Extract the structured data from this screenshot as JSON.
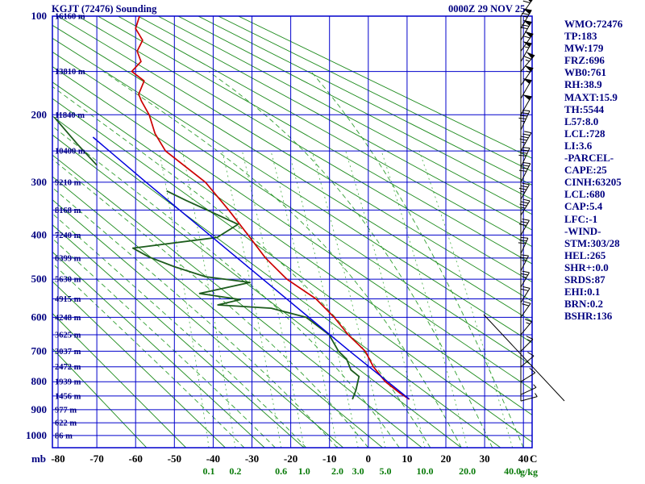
{
  "header": {
    "title": "KGJT (72476) Sounding",
    "datetime": "0000Z 29 NOV 25"
  },
  "info_panel": {
    "lines": [
      "WMO:72476",
      "TP:183",
      "MW:179",
      "FRZ:696",
      "WB0:761",
      "RH:38.9",
      "MAXT:15.9",
      "TH:5544",
      "L57:8.0",
      "LCL:728",
      "LI:3.6",
      "-PARCEL-",
      "CAPE:25",
      "CINH:63205",
      "LCL:680",
      "CAP:5.4",
      "LFC:-1",
      "-WIND-",
      "STM:303/28",
      "HEL:265",
      "SHR+:0.0",
      "SRDS:87",
      "EHI:0.1",
      "BRN:0.2",
      "BSHR:136"
    ]
  },
  "axes": {
    "pressure_unit": "mb",
    "temp_unit": "C",
    "mixing_unit": "g/kg",
    "pressure_ticks": [
      100,
      200,
      300,
      400,
      500,
      600,
      700,
      800,
      900,
      1000
    ],
    "temp_ticks": [
      -80,
      -70,
      -60,
      -50,
      -40,
      -30,
      -20,
      -10,
      0,
      10,
      20,
      30,
      40
    ],
    "mixing_ticks": [
      0.1,
      0.2,
      0.6,
      1.0,
      2.0,
      3.0,
      5.0,
      10.0,
      20.0,
      40.0
    ],
    "height_labels": [
      {
        "p": 100,
        "label": "16160 m"
      },
      {
        "p": 150,
        "label": "13810 m"
      },
      {
        "p": 200,
        "label": "11840 m"
      },
      {
        "p": 250,
        "label": "10400 m"
      },
      {
        "p": 300,
        "label": "9210 m"
      },
      {
        "p": 350,
        "label": "8168 m"
      },
      {
        "p": 400,
        "label": "7240 m"
      },
      {
        "p": 450,
        "label": "6399 m"
      },
      {
        "p": 500,
        "label": "5630 m"
      },
      {
        "p": 550,
        "label": "4915 m"
      },
      {
        "p": 600,
        "label": "4248 m"
      },
      {
        "p": 650,
        "label": "3625 m"
      },
      {
        "p": 700,
        "label": "3037 m"
      },
      {
        "p": 750,
        "label": "2472 m"
      },
      {
        "p": 800,
        "label": "1939 m"
      },
      {
        "p": 850,
        "label": "1456 m"
      },
      {
        "p": 900,
        "label": "977 m"
      },
      {
        "p": 950,
        "label": "622 m"
      },
      {
        "p": 1000,
        "label": "86 m"
      }
    ]
  },
  "chart_data": {
    "type": "line",
    "diagram": "stuve_sounding",
    "title": "KGJT (72476) Sounding 0000Z 29 NOV 25",
    "x_axis": {
      "label": "C",
      "min": -80,
      "max": 40,
      "grid_step": 10
    },
    "y_axis": {
      "label": "mb",
      "scale": "p^0.286 (Stuve)",
      "min": 100,
      "max": 1050,
      "grid_step": 50
    },
    "colors": {
      "grid": "#0000cc",
      "dry_adiabat": "#1b8a1b",
      "moist_adiabat": "#2f9e2f",
      "mixing_ratio": "#44ad44",
      "temperature": "#cc0000",
      "dewpoint": "#1c5c1c",
      "parcel": "#0000dd",
      "wind": "#000000",
      "labels_navy": "#000080",
      "labels_green": "#087a08"
    },
    "series": [
      {
        "name": "temperature",
        "color": "#cc0000",
        "points": [
          [
            862,
            10.6
          ],
          [
            840,
            8.2
          ],
          [
            800,
            4.4
          ],
          [
            750,
            1.3
          ],
          [
            700,
            -0.8
          ],
          [
            650,
            -5.2
          ],
          [
            600,
            -8.8
          ],
          [
            550,
            -13.5
          ],
          [
            500,
            -21
          ],
          [
            450,
            -26.5
          ],
          [
            400,
            -31
          ],
          [
            350,
            -36
          ],
          [
            300,
            -42
          ],
          [
            250,
            -52.3
          ],
          [
            225,
            -55
          ],
          [
            200,
            -56.5
          ],
          [
            183,
            -58.5
          ],
          [
            175,
            -59.2
          ],
          [
            160,
            -57.8
          ],
          [
            150,
            -61
          ],
          [
            140,
            -58.6
          ],
          [
            130,
            -59.6
          ],
          [
            120,
            -58.2
          ],
          [
            110,
            -60
          ],
          [
            100,
            -59
          ]
        ]
      },
      {
        "name": "dewpoint",
        "color": "#1c5c1c",
        "points": [
          [
            862,
            -4.1
          ],
          [
            830,
            -3.2
          ],
          [
            782,
            -2.4
          ],
          [
            760,
            -4.5
          ],
          [
            725,
            -5.6
          ],
          [
            700,
            -7.7
          ],
          [
            650,
            -10.1
          ],
          [
            600,
            -16
          ],
          [
            575,
            -25
          ],
          [
            566,
            -38.8
          ],
          [
            552,
            -33
          ],
          [
            536,
            -43.5
          ],
          [
            508,
            -30.5
          ],
          [
            494,
            -42
          ],
          [
            470,
            -50
          ],
          [
            448,
            -56.5
          ],
          [
            428,
            -60.7
          ],
          [
            405,
            -39
          ],
          [
            378,
            -33.6
          ],
          [
            352,
            -41
          ],
          [
            332,
            -47
          ],
          [
            315,
            -52
          ]
        ]
      },
      {
        "name": "dewpoint_upper",
        "color": "#1c5c1c",
        "points": [
          [
            272,
            -70
          ],
          [
            240,
            -75
          ],
          [
            203,
            -81
          ]
        ]
      },
      {
        "name": "parcel",
        "color": "#0000dd",
        "points": [
          [
            860,
            10.5
          ],
          [
            700,
            -4.8
          ],
          [
            500,
            -27.2
          ],
          [
            400,
            -40.9
          ],
          [
            300,
            -57.3
          ],
          [
            230,
            -71
          ]
        ]
      }
    ],
    "wind_profile": [
      {
        "p": 100,
        "dir": 295,
        "spd": 60
      },
      {
        "p": 110,
        "dir": 300,
        "spd": 65
      },
      {
        "p": 120,
        "dir": 300,
        "spd": 70
      },
      {
        "p": 130,
        "dir": 295,
        "spd": 60
      },
      {
        "p": 140,
        "dir": 300,
        "spd": 55
      },
      {
        "p": 150,
        "dir": 290,
        "spd": 65
      },
      {
        "p": 165,
        "dir": 295,
        "spd": 55
      },
      {
        "p": 180,
        "dir": 300,
        "spd": 50
      },
      {
        "p": 200,
        "dir": 300,
        "spd": 50
      },
      {
        "p": 220,
        "dir": 305,
        "spd": 45
      },
      {
        "p": 250,
        "dir": 300,
        "spd": 45
      },
      {
        "p": 275,
        "dir": 305,
        "spd": 40
      },
      {
        "p": 300,
        "dir": 303,
        "spd": 40
      },
      {
        "p": 330,
        "dir": 300,
        "spd": 35
      },
      {
        "p": 360,
        "dir": 298,
        "spd": 35
      },
      {
        "p": 400,
        "dir": 300,
        "spd": 32
      },
      {
        "p": 440,
        "dir": 305,
        "spd": 30
      },
      {
        "p": 480,
        "dir": 303,
        "spd": 28
      },
      {
        "p": 520,
        "dir": 300,
        "spd": 26
      },
      {
        "p": 560,
        "dir": 298,
        "spd": 24
      },
      {
        "p": 600,
        "dir": 295,
        "spd": 22
      },
      {
        "p": 650,
        "dir": 290,
        "spd": 18
      },
      {
        "p": 700,
        "dir": 285,
        "spd": 15
      },
      {
        "p": 750,
        "dir": 280,
        "spd": 12
      },
      {
        "p": 800,
        "dir": 272,
        "spd": 10
      },
      {
        "p": 845,
        "dir": 265,
        "spd": 8
      },
      {
        "p": 868,
        "dir": 255,
        "spd": 6
      }
    ]
  }
}
